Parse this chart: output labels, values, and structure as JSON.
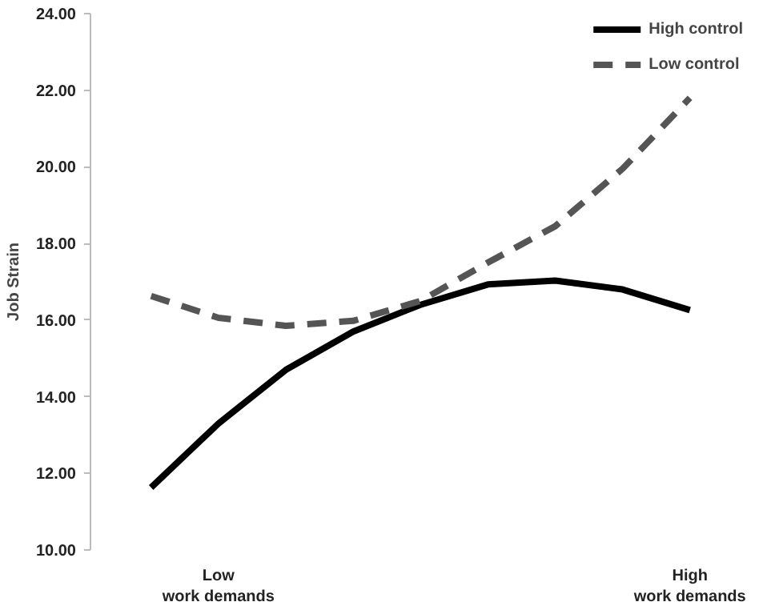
{
  "chart_data": {
    "type": "line",
    "ylabel": "Job Strain",
    "categories": [
      null,
      "Low\nwork demands",
      null,
      null,
      null,
      null,
      null,
      null,
      "High\nwork demands"
    ],
    "series": [
      {
        "name": "High control",
        "color": "#000000",
        "line_style": "solid",
        "values": [
          11.63,
          13.3,
          14.7,
          15.7,
          16.4,
          16.93,
          17.03,
          16.8,
          16.26
        ]
      },
      {
        "name": "Low control",
        "color": "#555555",
        "line_style": "dashed",
        "values": [
          16.63,
          16.06,
          15.85,
          15.98,
          16.5,
          17.5,
          18.45,
          19.95,
          21.8
        ]
      }
    ],
    "ylim": [
      10,
      24
    ],
    "yticks": [
      {
        "value": 10,
        "label": "10.00"
      },
      {
        "value": 12,
        "label": "12.00"
      },
      {
        "value": 14,
        "label": "14.00"
      },
      {
        "value": 16,
        "label": "16.00"
      },
      {
        "value": 18,
        "label": "18.00"
      },
      {
        "value": 20,
        "label": "20.00"
      },
      {
        "value": 22,
        "label": "22.00"
      },
      {
        "value": 24,
        "label": "24.00"
      }
    ],
    "grid": false,
    "legend": "top right",
    "marker": "none"
  }
}
